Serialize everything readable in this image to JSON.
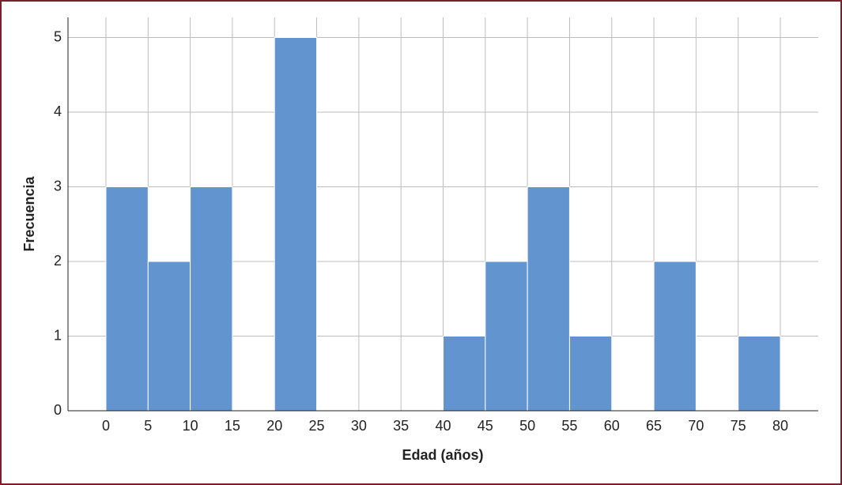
{
  "chart_data": {
    "type": "histogram",
    "x_label": "Edad (años)",
    "y_label": "Frecuencia",
    "bins": [
      0,
      5,
      10,
      15,
      20,
      25,
      30,
      35,
      40,
      45,
      50,
      55,
      60,
      65,
      70,
      75,
      80
    ],
    "counts": [
      3,
      2,
      3,
      0,
      5,
      0,
      0,
      0,
      1,
      2,
      3,
      1,
      0,
      2,
      0,
      1
    ],
    "color": "#6294cf",
    "xlim": [
      -4.5,
      84.5
    ],
    "ylim": [
      0,
      5.27
    ],
    "xticks": [
      0,
      5,
      10,
      15,
      20,
      25,
      30,
      35,
      40,
      45,
      50,
      55,
      60,
      65,
      70,
      75,
      80
    ],
    "yticks": [
      0,
      1,
      2,
      3,
      4,
      5
    ],
    "grid": true
  }
}
